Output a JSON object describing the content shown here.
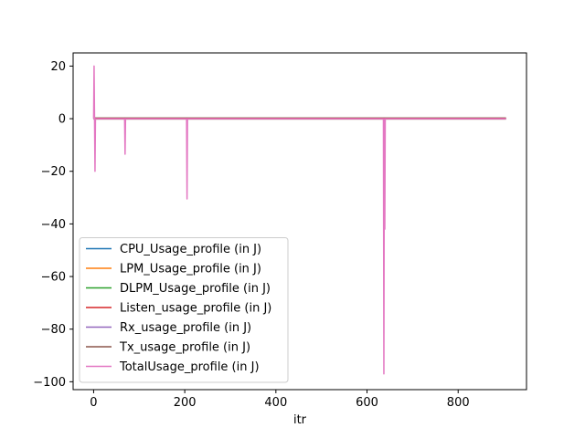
{
  "chart_data": {
    "type": "line",
    "title": "",
    "xlabel": "itr",
    "ylabel": "",
    "xlim": [
      -45,
      950
    ],
    "ylim": [
      -103,
      25
    ],
    "xticks": [
      0,
      200,
      400,
      600,
      800
    ],
    "yticks": [
      20,
      0,
      -20,
      -40,
      -60,
      -80,
      -100
    ],
    "grid": false,
    "legend_position": "lower-left",
    "series": [
      {
        "name": "CPU_Usage_profile (in J)",
        "color": "#1f77b4",
        "x": [
          0,
          1,
          2,
          3,
          905
        ],
        "y": [
          0.3,
          0.3,
          0.3,
          0.3,
          0.3
        ]
      },
      {
        "name": "LPM_Usage_profile (in J)",
        "color": "#ff7f0e",
        "x": [
          0,
          1,
          2,
          3,
          905
        ],
        "y": [
          0.2,
          0.2,
          0.2,
          0.2,
          0.2
        ]
      },
      {
        "name": "DLPM_Usage_profile (in J)",
        "color": "#2ca02c",
        "x": [
          0,
          905
        ],
        "y": [
          0.0,
          0.0
        ]
      },
      {
        "name": "Listen_usage_profile (in J)",
        "color": "#d62728",
        "x": [
          0,
          905
        ],
        "y": [
          0.1,
          0.1
        ]
      },
      {
        "name": "Rx_usage_profile (in J)",
        "color": "#9467bd",
        "x": [
          0,
          905
        ],
        "y": [
          0.0,
          0.0
        ]
      },
      {
        "name": "Tx_usage_profile (in J)",
        "color": "#8c564b",
        "x": [
          0,
          905
        ],
        "y": [
          -0.1,
          -0.1
        ]
      },
      {
        "name": "TotalUsage_profile (in J)",
        "color": "#e377c2",
        "x": [
          0,
          1,
          2,
          3,
          4,
          68,
          69,
          70,
          71,
          204,
          205,
          206,
          207,
          636,
          637,
          638,
          639,
          640,
          905
        ],
        "y": [
          0,
          20,
          0,
          -20,
          0,
          0,
          -13.5,
          0,
          0,
          0,
          -30.5,
          0,
          0,
          0,
          -97,
          0,
          -42,
          0,
          0
        ]
      }
    ]
  }
}
